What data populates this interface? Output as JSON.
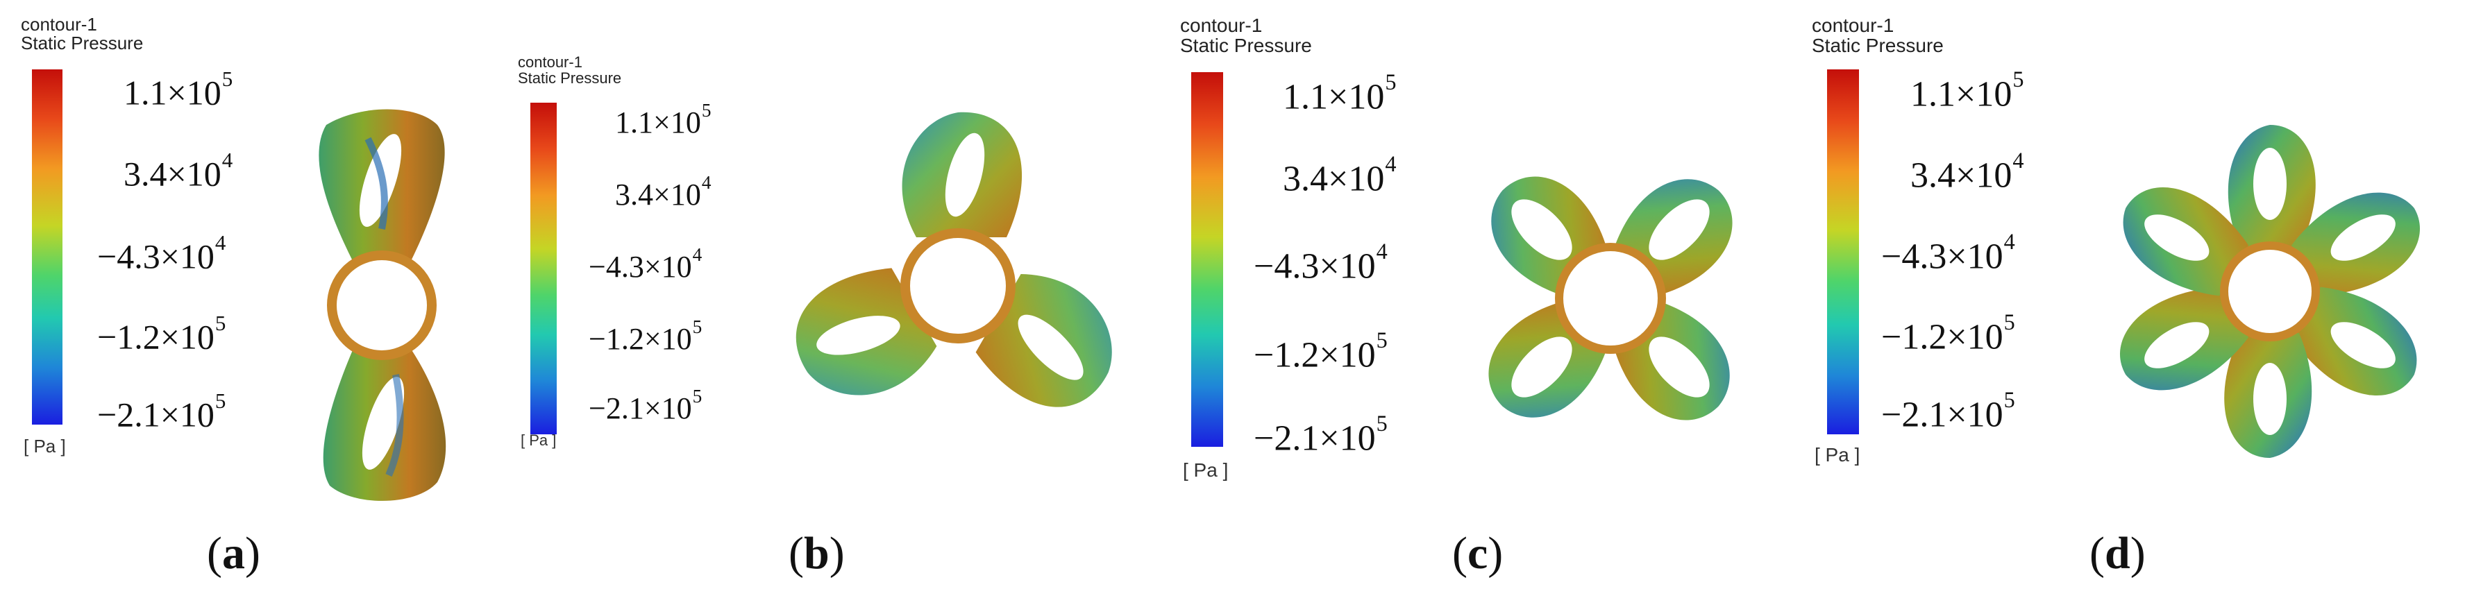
{
  "panels": [
    {
      "id": "a",
      "caption_letter": "a",
      "legend": {
        "title_line1": "contour-1",
        "title_line2": "Static Pressure",
        "ticks": [
          {
            "mantissa": "1.1×10",
            "exp": "5"
          },
          {
            "mantissa": "3.4×10",
            "exp": "4"
          },
          {
            "mantissa": "−4.3×10",
            "exp": "4"
          },
          {
            "mantissa": "−1.2×10",
            "exp": "5"
          },
          {
            "mantissa": "−2.1×10",
            "exp": "5"
          }
        ],
        "unit": "[ Pa ]"
      },
      "blade_count": 2
    },
    {
      "id": "b",
      "caption_letter": "b",
      "legend": {
        "title_line1": "contour-1",
        "title_line2": "Static Pressure",
        "ticks": [
          {
            "mantissa": "1.1×10",
            "exp": "5"
          },
          {
            "mantissa": "3.4×10",
            "exp": "4"
          },
          {
            "mantissa": "−4.3×10",
            "exp": "4"
          },
          {
            "mantissa": "−1.2×10",
            "exp": "5"
          },
          {
            "mantissa": "−2.1×10",
            "exp": "5"
          }
        ],
        "unit": "[ Pa ]"
      },
      "blade_count": 3
    },
    {
      "id": "c",
      "caption_letter": "c",
      "legend": {
        "title_line1": "contour-1",
        "title_line2": "Static Pressure",
        "ticks": [
          {
            "mantissa": "1.1×10",
            "exp": "5"
          },
          {
            "mantissa": "3.4×10",
            "exp": "4"
          },
          {
            "mantissa": "−4.3×10",
            "exp": "4"
          },
          {
            "mantissa": "−1.2×10",
            "exp": "5"
          },
          {
            "mantissa": "−2.1×10",
            "exp": "5"
          }
        ],
        "unit": "[ Pa ]"
      },
      "blade_count": 4
    },
    {
      "id": "d",
      "caption_letter": "d",
      "legend": {
        "title_line1": "contour-1",
        "title_line2": "Static Pressure",
        "ticks": [
          {
            "mantissa": "1.1×10",
            "exp": "5"
          },
          {
            "mantissa": "3.4×10",
            "exp": "4"
          },
          {
            "mantissa": "−4.3×10",
            "exp": "4"
          },
          {
            "mantissa": "−1.2×10",
            "exp": "5"
          },
          {
            "mantissa": "−2.1×10",
            "exp": "5"
          }
        ],
        "unit": "[ Pa ]"
      },
      "blade_count": 6
    }
  ],
  "colors": {
    "blade_outer": "#7a9a2e",
    "blade_inner": "#c8821f",
    "blade_shadow": "#2b6fb5",
    "hub_ring": "#c8862a"
  }
}
